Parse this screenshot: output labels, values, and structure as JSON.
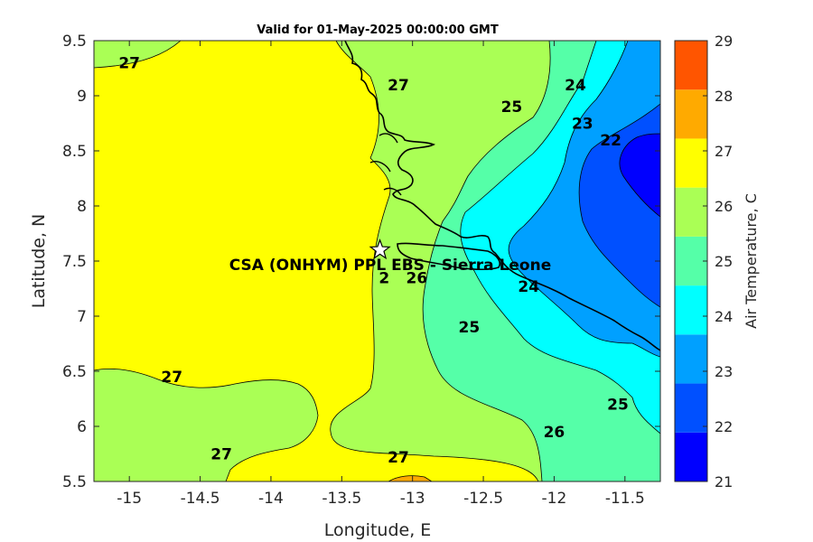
{
  "title": "Valid for 01-May-2025 00:00:00 GMT",
  "station_label": "CSA (ONHYM) PPL EBS - Sierra Leone",
  "station": {
    "lon": -13.23,
    "lat": 7.6,
    "icon": "star-icon"
  },
  "chart_data": {
    "type": "heatmap",
    "title": "Valid for 01-May-2025 00:00:00 GMT",
    "xlabel": "Longitude, E",
    "ylabel": "Latitude, N",
    "xlim": [
      -15.25,
      -11.25
    ],
    "ylim": [
      5.5,
      9.5
    ],
    "x_ticks": [
      "-15",
      "-14.5",
      "-14",
      "-13.5",
      "-13",
      "-12.5",
      "-12",
      "-11.5"
    ],
    "y_ticks": [
      "5.5",
      "6",
      "6.5",
      "7",
      "7.5",
      "8",
      "8.5",
      "9",
      "9.5"
    ],
    "colorbar": {
      "label": "Air Temperature, C",
      "ticks": [
        "21",
        "22",
        "23",
        "24",
        "25",
        "26",
        "27",
        "28",
        "29"
      ],
      "levels": [
        21,
        22,
        23,
        24,
        25,
        26,
        27,
        28,
        29
      ],
      "colors": [
        "#0000ff",
        "#0050ff",
        "#00a0ff",
        "#00ffff",
        "#55ffa8",
        "#aaff55",
        "#ffff00",
        "#ffaa00",
        "#ff5500"
      ]
    },
    "contour_labels": [
      {
        "text": "27",
        "lon": -15.0,
        "lat": 9.3
      },
      {
        "text": "27",
        "lon": -13.1,
        "lat": 9.1
      },
      {
        "text": "25",
        "lon": -12.3,
        "lat": 8.9
      },
      {
        "text": "24",
        "lon": -11.85,
        "lat": 9.1
      },
      {
        "text": "23",
        "lon": -11.8,
        "lat": 8.75
      },
      {
        "text": "22",
        "lon": -11.6,
        "lat": 8.6
      },
      {
        "text": "2",
        "lon": -13.2,
        "lat": 7.35
      },
      {
        "text": "26",
        "lon": -12.97,
        "lat": 7.35
      },
      {
        "text": "24",
        "lon": -12.18,
        "lat": 7.27
      },
      {
        "text": "25",
        "lon": -12.6,
        "lat": 6.9
      },
      {
        "text": "27",
        "lon": -14.7,
        "lat": 6.45
      },
      {
        "text": "25",
        "lon": -11.55,
        "lat": 6.2
      },
      {
        "text": "26",
        "lon": -12.0,
        "lat": 5.95
      },
      {
        "text": "27",
        "lon": -14.35,
        "lat": 5.75
      },
      {
        "text": "27",
        "lon": -13.1,
        "lat": 5.72
      }
    ]
  }
}
